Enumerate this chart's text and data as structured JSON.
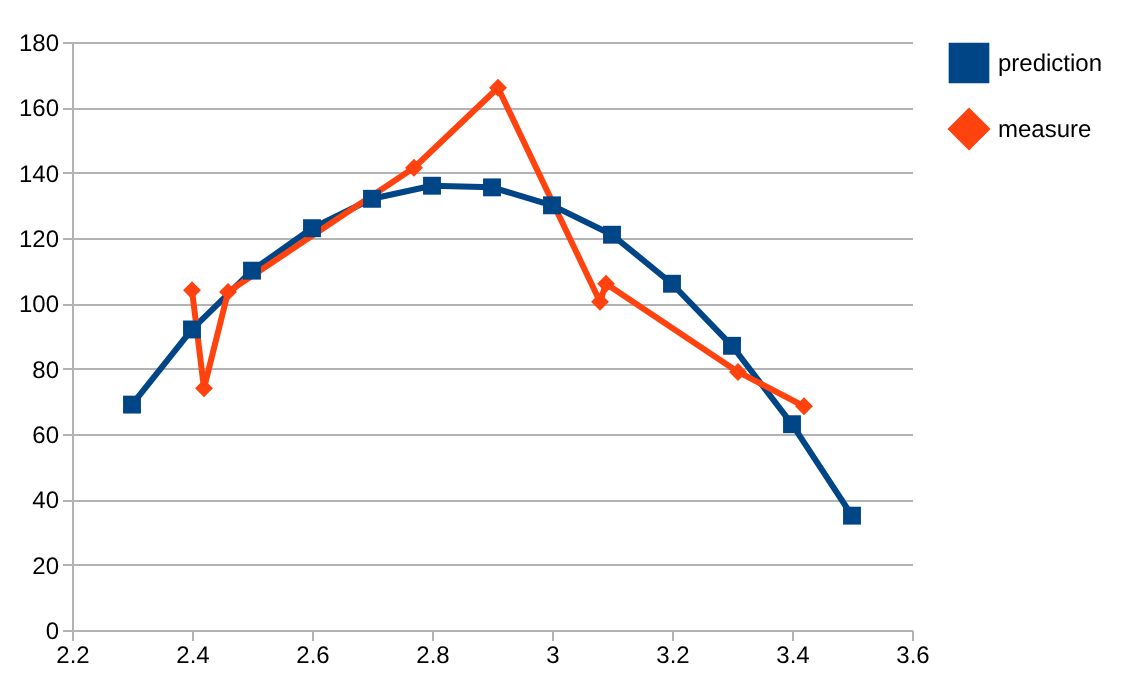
{
  "chart_data": {
    "type": "line",
    "xlim": [
      2.2,
      3.6
    ],
    "xticks": [
      2.2,
      2.4,
      2.6,
      2.8,
      3,
      3.2,
      3.4,
      3.6
    ],
    "ylim": [
      0,
      180
    ],
    "yticks": [
      0,
      20,
      40,
      60,
      80,
      100,
      120,
      140,
      160,
      180
    ],
    "grid": "y",
    "legend": "right",
    "series": [
      {
        "name": "prediction",
        "color": "#004586",
        "marker": "square",
        "x": [
          2.3,
          2.4,
          2.5,
          2.6,
          2.7,
          2.8,
          2.9,
          3.0,
          3.1,
          3.2,
          3.3,
          3.4,
          3.5
        ],
        "values": [
          69,
          92,
          110,
          123,
          132,
          136,
          135.5,
          130,
          121,
          106,
          87,
          63,
          35
        ]
      },
      {
        "name": "measure",
        "color": "#ff420e",
        "marker": "diamond",
        "x": [
          2.4,
          2.42,
          2.46,
          2.77,
          2.91,
          3.08,
          3.09,
          3.31,
          3.42
        ],
        "values": [
          104,
          74,
          103.5,
          141.5,
          166,
          100.5,
          106,
          79,
          68.5
        ]
      }
    ]
  }
}
